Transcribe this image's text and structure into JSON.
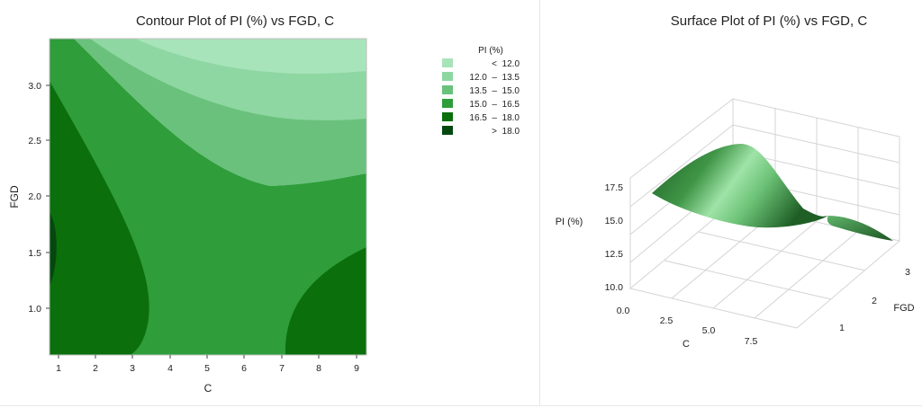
{
  "colors": {
    "lt12": "#a8e4ba",
    "b12_135": "#8ed7a2",
    "b135_15": "#6ac17c",
    "b15_165": "#2e9d3a",
    "b165_18": "#0b6f0b",
    "gt18": "#04480d",
    "surface_dark": "#1d5e24",
    "surface_light": "#9fe3a8",
    "grid": "#d4d4d4",
    "axis": "#9a9a9a"
  },
  "chart_data": [
    {
      "type": "contour",
      "title": "Contour Plot of PI (%) vs FGD, C",
      "xlabel": "C",
      "ylabel": "FGD",
      "xlim": [
        0.7,
        9.3
      ],
      "ylim": [
        0.6,
        3.4
      ],
      "x_ticks": [
        "1",
        "2",
        "3",
        "4",
        "5",
        "6",
        "7",
        "8",
        "9"
      ],
      "y_ticks": [
        "1.0",
        "1.5",
        "2.0",
        "2.5",
        "3.0"
      ],
      "legend": {
        "title": "PI (%)",
        "placement": "top-right",
        "entries": [
          {
            "label": "<  12.0",
            "color_key": "lt12"
          },
          {
            "label": "12.0  –  13.5",
            "color_key": "b12_135"
          },
          {
            "label": "13.5  –  15.0",
            "color_key": "b135_15"
          },
          {
            "label": "15.0  –  16.5",
            "color_key": "b15_165"
          },
          {
            "label": "16.5  –  18.0",
            "color_key": "b165_18"
          },
          {
            "label": ">  18.0",
            "color_key": "gt18"
          }
        ]
      }
    },
    {
      "type": "surface",
      "title": "Surface Plot of PI (%) vs FGD, C",
      "xlabel": "C",
      "ylabel": "FGD",
      "zlabel": "PI (%)",
      "x_ticks": [
        "0.0",
        "2.5",
        "5.0",
        "7.5"
      ],
      "y_ticks": [
        "1",
        "2",
        "3"
      ],
      "z_ticks": [
        "10.0",
        "12.5",
        "15.0",
        "17.5"
      ],
      "zlim": [
        10.0,
        17.5
      ]
    }
  ]
}
